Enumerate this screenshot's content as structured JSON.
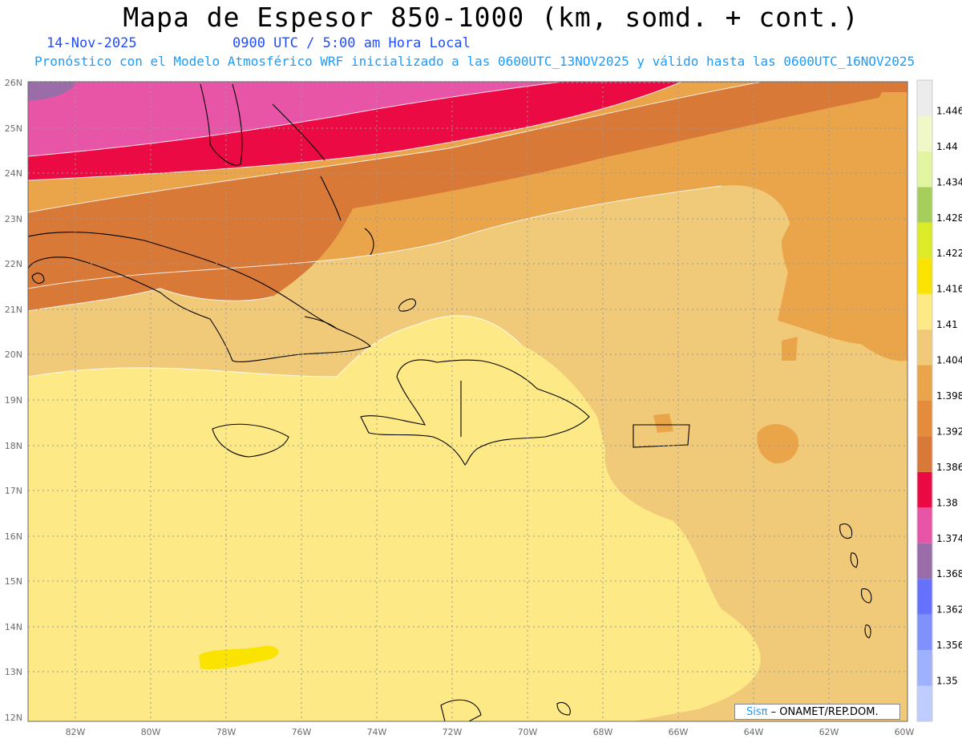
{
  "header": {
    "title": "Mapa de Espesor 850-1000 (km, somd. + cont.)",
    "date": "14-Nov-2025",
    "time": "0900 UTC / 5:00 am Hora Local",
    "info": "Pronóstico con el Modelo Atmosférico WRF inicializado a las 0600UTC_13NOV2025 y válido hasta las  0600UTC_16NOV2025"
  },
  "axes": {
    "lat_labels": [
      "12N",
      "13N",
      "14N",
      "15N",
      "16N",
      "17N",
      "18N",
      "19N",
      "20N",
      "21N",
      "22N",
      "23N",
      "24N",
      "25N",
      "26N"
    ],
    "lon_labels": [
      "82W",
      "80W",
      "78W",
      "76W",
      "74W",
      "72W",
      "70W",
      "68W",
      "66W",
      "64W",
      "62W",
      "60W"
    ],
    "lat_range": [
      12,
      26
    ],
    "lon_range": [
      -83.2,
      -60
    ]
  },
  "colorbar": {
    "labels": [
      "1.35",
      "1.356",
      "1.362",
      "1.368",
      "1.374",
      "1.38",
      "1.386",
      "1.392",
      "1.398",
      "1.404",
      "1.41",
      "1.416",
      "1.422",
      "1.428",
      "1.434",
      "1.44",
      "1.446"
    ],
    "colors": [
      "#bfccff",
      "#9fb0ff",
      "#7f90ff",
      "#6472ff",
      "#9a6da8",
      "#e854a6",
      "#eb0a44",
      "#d87938",
      "#e48c3c",
      "#eaa449",
      "#f0ca78",
      "#fde985",
      "#fae300",
      "#dbeb28",
      "#a6ce5a",
      "#e1f5a0",
      "#f0f8c8",
      "#ececec"
    ]
  },
  "credit": {
    "prefix": "Sis",
    "pi": "π",
    "suffix": " – ONAMET/REP.DOM."
  },
  "chart_data": {
    "type": "heatmap",
    "title": "Mapa de Espesor 850-1000 (km, somd. + cont.)",
    "xlabel": "",
    "ylabel": "",
    "xlim": [
      -83.2,
      -60
    ],
    "ylim": [
      12,
      26
    ],
    "grid": true,
    "legend_position": "right",
    "levels": [
      1.35,
      1.356,
      1.362,
      1.368,
      1.374,
      1.38,
      1.386,
      1.392,
      1.398,
      1.404,
      1.41,
      1.416,
      1.422,
      1.428,
      1.434,
      1.44,
      1.446
    ]
  }
}
